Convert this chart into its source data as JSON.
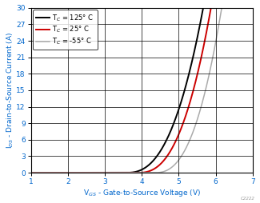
{
  "title": "",
  "xlabel": "V$_{GS}$ - Gate-to-Source Voltage (V)",
  "ylabel": "I$_{DS}$ - Drain-to-Source Current (A)",
  "xlim": [
    1,
    7
  ],
  "ylim": [
    0,
    30
  ],
  "xticks": [
    1,
    2,
    3,
    4,
    5,
    6,
    7
  ],
  "yticks": [
    0,
    3,
    6,
    9,
    12,
    15,
    18,
    21,
    24,
    27,
    30
  ],
  "legend_entries": [
    "T$_C$ = 125° C",
    "T$_C$ = 25° C",
    "T$_C$ = -55° C"
  ],
  "line_colors": [
    "#000000",
    "#cc0000",
    "#aaaaaa"
  ],
  "background_color": "#ffffff",
  "watermark": "C2222",
  "curves": [
    {
      "vth": 3.58,
      "k": 4.8,
      "n": 2.5,
      "color": "#000000",
      "lw": 1.4
    },
    {
      "vth": 3.9,
      "k": 5.5,
      "n": 2.5,
      "color": "#cc0000",
      "lw": 1.4
    },
    {
      "vth": 4.35,
      "k": 6.8,
      "n": 2.5,
      "color": "#aaaaaa",
      "lw": 1.1
    }
  ]
}
